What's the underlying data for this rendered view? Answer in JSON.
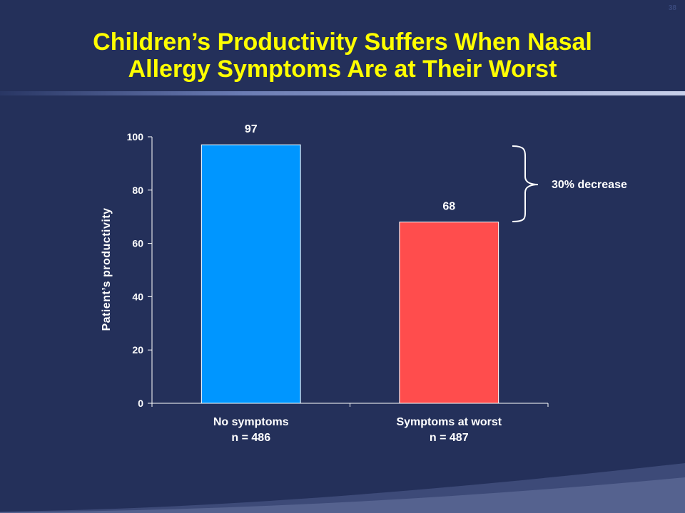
{
  "slide_number": "38",
  "title_line1": "Children’s Productivity Suffers When Nasal",
  "title_line2": "Allergy Symptoms Are at Their Worst",
  "colors": {
    "background": "#24305a",
    "title": "#ffff00",
    "bar_no_symptoms": "#0096ff",
    "bar_symptoms_worst": "#ff4d4d",
    "text": "#ffffff"
  },
  "chart_data": {
    "type": "bar",
    "categories": [
      [
        "No symptoms",
        "n = 486"
      ],
      [
        "Symptoms at worst",
        "n = 487"
      ]
    ],
    "values": [
      97,
      68
    ],
    "data_labels": [
      "97",
      "68"
    ],
    "ylabel": "Patient’s productivity",
    "xlabel": "",
    "ylim": [
      0,
      100
    ],
    "yticks": [
      0,
      20,
      40,
      60,
      80,
      100
    ],
    "grid": false,
    "annotation": "30% decrease"
  }
}
